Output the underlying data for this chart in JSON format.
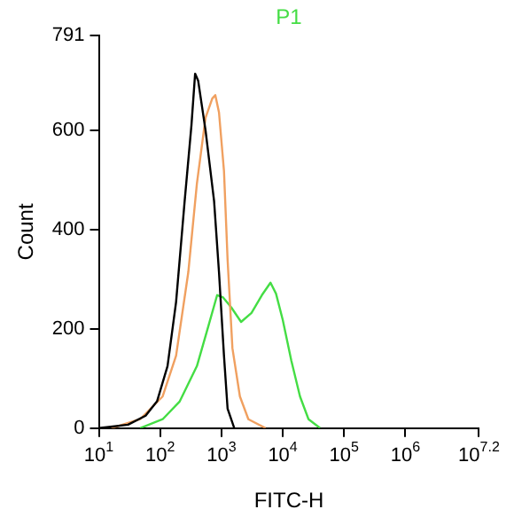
{
  "chart_data": {
    "type": "line",
    "xlabel": "FITC-H",
    "ylabel": "Count",
    "log": "x",
    "grid": false,
    "legend": "top",
    "marker": "none",
    "line_style": "solid",
    "xlim": [
      10,
      15848932
    ],
    "ylim": [
      0,
      791
    ],
    "xticks": [
      {
        "value": 10,
        "label": "10$^{1}$"
      },
      {
        "value": 100,
        "label": "10$^{2}$"
      },
      {
        "value": 1000,
        "label": "10$^{3}$"
      },
      {
        "value": 10000,
        "label": "10$^{4}$"
      },
      {
        "value": 100000,
        "label": "10$^{5}$"
      },
      {
        "value": 1000000,
        "label": "10$^{6}$"
      },
      {
        "value": 15848932,
        "label": "10$^{7.2}$"
      }
    ],
    "yticks": [
      0,
      200,
      400,
      600,
      791
    ],
    "series": [
      {
        "color": "#000000",
        "x": [
          10,
          30,
          58,
          89,
          132,
          182,
          251,
          324,
          372,
          417,
          550,
          759,
          912,
          1100,
          1260,
          1620
        ],
        "values": [
          0,
          7,
          25,
          54,
          125,
          254,
          457,
          610,
          714,
          700,
          600,
          457,
          314,
          146,
          39,
          0
        ]
      },
      {
        "color": "#f0a060",
        "x": [
          16,
          47,
          110,
          182,
          288,
          398,
          550,
          708,
          794,
          912,
          1100,
          1260,
          1510,
          2000,
          2750,
          5250
        ],
        "values": [
          0,
          18,
          64,
          146,
          314,
          493,
          625,
          664,
          671,
          636,
          518,
          339,
          161,
          64,
          18,
          0
        ]
      },
      {
        "name": "P1",
        "color": "#44dd44",
        "x": [
          47,
          110,
          209,
          398,
          617,
          851,
          1050,
          1450,
          2090,
          3090,
          4570,
          6310,
          7760,
          10000,
          13800,
          19100,
          26300,
          40700
        ],
        "values": [
          0,
          18,
          54,
          125,
          207,
          268,
          264,
          243,
          214,
          232,
          268,
          293,
          271,
          218,
          136,
          64,
          18,
          0
        ]
      }
    ]
  }
}
